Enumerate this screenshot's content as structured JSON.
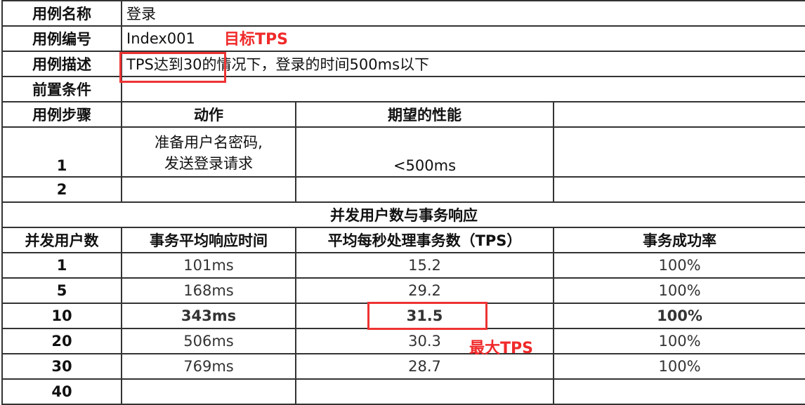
{
  "case": {
    "name_label": "用例名称",
    "name_value": "登录",
    "id_label": "用例编号",
    "id_value": "Index001",
    "desc_label": "用例描述",
    "desc_value": "TPS达到30的情况下，登录的时间500ms以下",
    "precond_label": "前置条件",
    "precond_value": "",
    "steps_label": "用例步骤",
    "action_header": "动作",
    "expected_header": "期望的性能",
    "steps": [
      {
        "no": "1",
        "action_line1": "准备用户名密码,",
        "action_line2": "发送登录请求",
        "expected": "<500ms"
      },
      {
        "no": "2",
        "action_line1": "",
        "action_line2": "",
        "expected": ""
      }
    ]
  },
  "results": {
    "section_title": "并发用户数与事务响应",
    "headers": [
      "并发用户数",
      "事务平均响应时间",
      "平均每秒处理事务数（TPS）",
      "事务成功率"
    ],
    "rows": [
      [
        "1",
        "101ms",
        "15.2",
        "100%"
      ],
      [
        "5",
        "168ms",
        "29.2",
        "100%"
      ],
      [
        "10",
        "343ms",
        "31.5",
        "100%"
      ],
      [
        "20",
        "506ms",
        "30.3",
        "100%"
      ],
      [
        "30",
        "769ms",
        "28.7",
        "100%"
      ],
      [
        "40",
        "",
        "",
        ""
      ]
    ],
    "highlighted_row": "10"
  },
  "annotations": {
    "target_tps": "目标TPS",
    "max_tps": "最大TPS",
    "color": "#ee3333"
  }
}
